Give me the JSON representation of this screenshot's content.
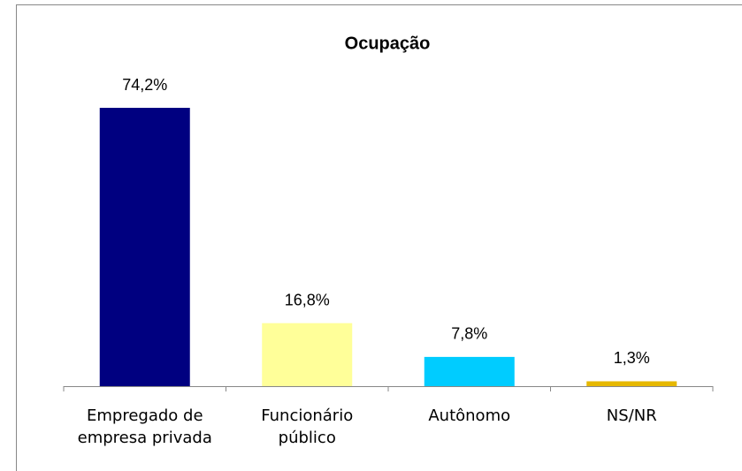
{
  "chart_data": {
    "type": "bar",
    "title": "Ocupação",
    "categories": [
      "Empregado de empresa privada",
      "Funcionário público",
      "Autônomo",
      "NS/NR"
    ],
    "values": [
      74.2,
      16.8,
      7.8,
      1.3
    ],
    "value_labels": [
      "74,2%",
      "16,8%",
      "7,8%",
      "1,3%"
    ],
    "colors": [
      "#000080",
      "#ffff99",
      "#00ccff",
      "#e6b800"
    ]
  }
}
